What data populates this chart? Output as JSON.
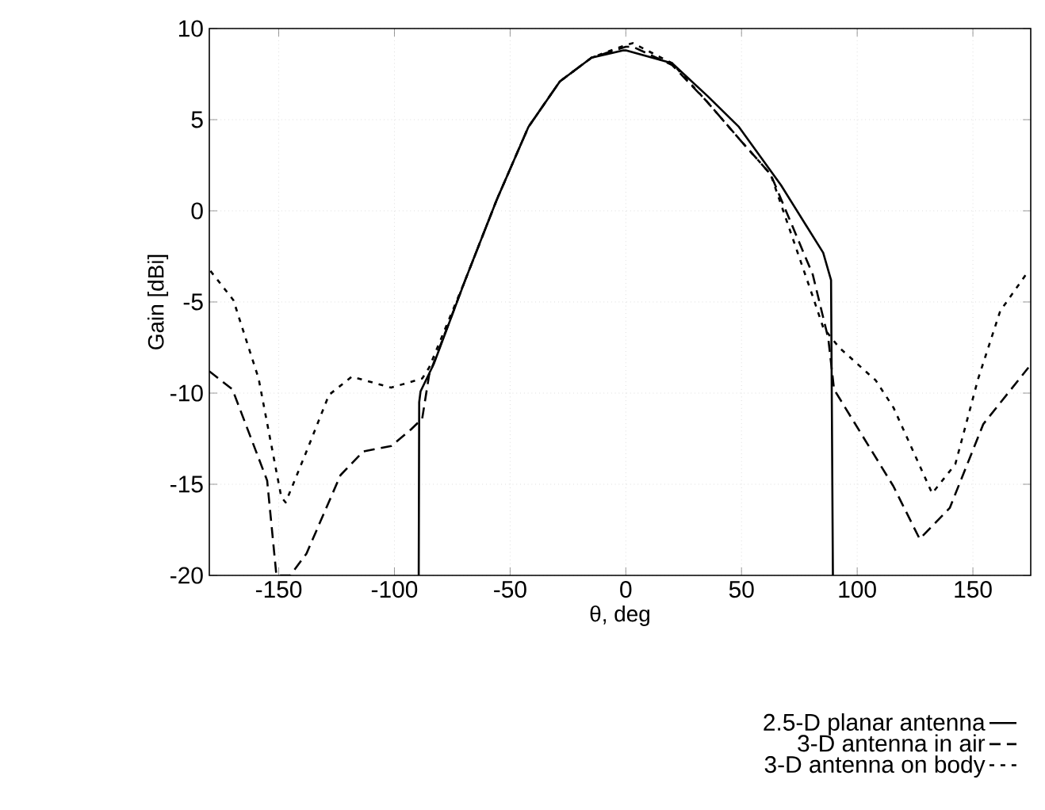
{
  "chart_data": {
    "type": "line",
    "xlabel": "θ, deg",
    "ylabel": "Gain [dBi]",
    "xlim": [
      -180,
      175
    ],
    "ylim": [
      -20,
      10
    ],
    "xticks": [
      -150,
      -100,
      -50,
      0,
      50,
      100,
      150
    ],
    "yticks": [
      -20,
      -15,
      -10,
      -5,
      0,
      5,
      10
    ],
    "grid": true,
    "legend": "bottom",
    "series": [
      {
        "name": "2.5-D planar antenna",
        "color": "#000000",
        "line_style": "solid",
        "x": [
          -89.5,
          -89.3,
          -88.7,
          -83,
          -69.4,
          -55.8,
          -42.1,
          -28.5,
          -14.8,
          -1,
          0,
          20,
          35.3,
          48.9,
          67.1,
          85.3,
          88.7,
          89.5
        ],
        "values": [
          -20,
          -10.5,
          -9.9,
          -8.4,
          -3.8,
          0.6,
          4.6,
          7.1,
          8.4,
          8.8,
          8.8,
          8.1,
          6.3,
          4.6,
          1.4,
          -2.3,
          -3.8,
          -20
        ]
      },
      {
        "name": "3-D antenna in air",
        "color": "#000000",
        "line_style": "dashed",
        "x": [
          -180,
          -170,
          -155,
          -151,
          -145,
          -138,
          -123.3,
          -113.5,
          -101.4,
          -92.9,
          -88,
          -85,
          -69.4,
          -55.8,
          -42.1,
          -28.5,
          -14.8,
          0,
          3,
          20,
          35,
          50,
          62.6,
          80.8,
          87.5,
          90,
          115.6,
          127,
          140,
          154.5,
          174
        ],
        "values": [
          -8.8,
          -9.8,
          -14.8,
          -20,
          -20,
          -18.8,
          -14.5,
          -13.2,
          -12.9,
          -12,
          -11.4,
          -9,
          -3.8,
          0.6,
          4.6,
          7.1,
          8.4,
          9,
          9,
          8,
          6,
          3.8,
          2,
          -3.5,
          -7,
          -9.8,
          -15.1,
          -18,
          -16.3,
          -11.7,
          -8.6
        ]
      },
      {
        "name": "3-D antenna on body",
        "color": "#000000",
        "line_style": "dotted",
        "x": [
          -179.5,
          -169.6,
          -158.7,
          -148.9,
          -147,
          -138,
          -128.3,
          -118.5,
          -101.4,
          -88,
          -85,
          -69.4,
          -55.8,
          -42.1,
          -28.5,
          -14.8,
          0,
          3,
          20,
          35,
          50,
          62.6,
          80.8,
          85.3,
          92.2,
          108,
          115.7,
          132.4,
          142.4,
          152.3,
          161.8,
          174
        ],
        "values": [
          -3.3,
          -4.9,
          -9.2,
          -15.7,
          -16,
          -13.2,
          -10.1,
          -9.1,
          -9.7,
          -9.2,
          -8.6,
          -3.8,
          0.6,
          4.6,
          7.1,
          8.4,
          9.1,
          9.2,
          8.1,
          6,
          3.8,
          2,
          -4.7,
          -6.4,
          -7.5,
          -9.3,
          -10.8,
          -15.5,
          -13.9,
          -9.2,
          -5.5,
          -3.3
        ]
      }
    ]
  }
}
